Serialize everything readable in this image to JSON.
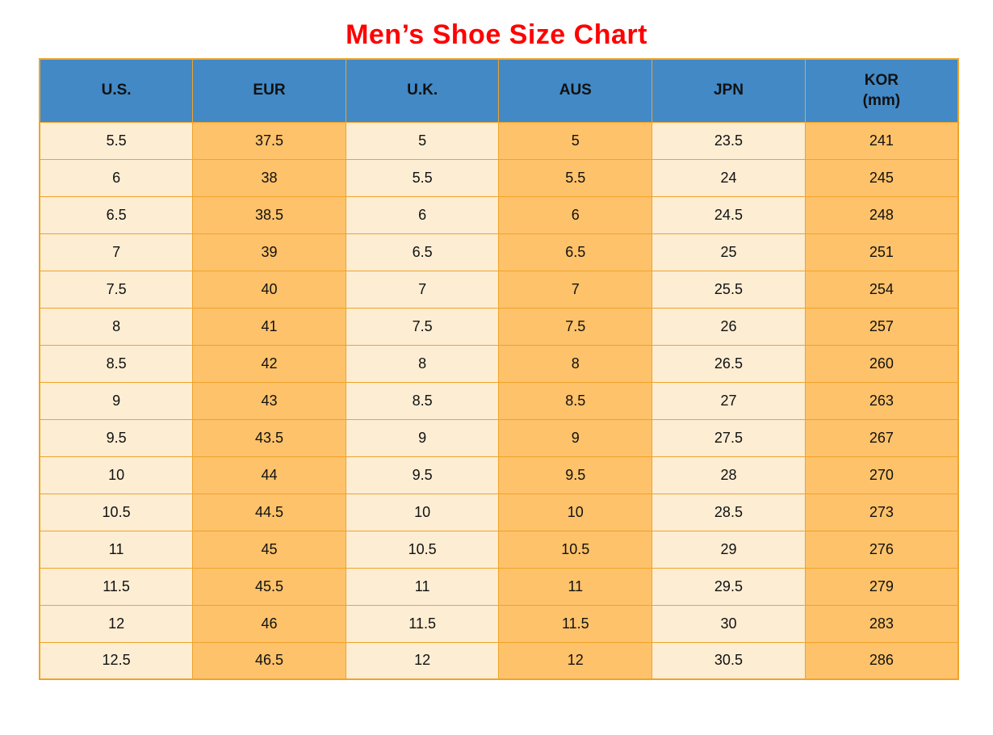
{
  "page": {
    "title": "Men’s Shoe Size Chart"
  },
  "colors": {
    "title": "#ff0000",
    "header_bg": "#4289c6",
    "cell_light_bg": "#fcedd3",
    "cell_orange_bg": "#fdc26a",
    "border": "#f0a32b",
    "text": "#111111",
    "page_bg": "#ffffff"
  },
  "chart_data": {
    "type": "table",
    "title": "Men’s Shoe Size Chart",
    "columns": [
      "U.S.",
      "EUR",
      "U.K.",
      "AUS",
      "JPN",
      "KOR (mm)"
    ],
    "headers": [
      {
        "id": "us",
        "label": "U.S.",
        "sub": ""
      },
      {
        "id": "eur",
        "label": "EUR",
        "sub": ""
      },
      {
        "id": "uk",
        "label": "U.K.",
        "sub": ""
      },
      {
        "id": "aus",
        "label": "AUS",
        "sub": ""
      },
      {
        "id": "jpn",
        "label": "JPN",
        "sub": ""
      },
      {
        "id": "kor",
        "label": "KOR",
        "sub": "(mm)"
      }
    ],
    "column_fills": [
      "light",
      "orange",
      "light",
      "orange",
      "light",
      "orange"
    ],
    "rows": [
      [
        "5.5",
        "37.5",
        "5",
        "5",
        "23.5",
        "241"
      ],
      [
        "6",
        "38",
        "5.5",
        "5.5",
        "24",
        "245"
      ],
      [
        "6.5",
        "38.5",
        "6",
        "6",
        "24.5",
        "248"
      ],
      [
        "7",
        "39",
        "6.5",
        "6.5",
        "25",
        "251"
      ],
      [
        "7.5",
        "40",
        "7",
        "7",
        "25.5",
        "254"
      ],
      [
        "8",
        "41",
        "7.5",
        "7.5",
        "26",
        "257"
      ],
      [
        "8.5",
        "42",
        "8",
        "8",
        "26.5",
        "260"
      ],
      [
        "9",
        "43",
        "8.5",
        "8.5",
        "27",
        "263"
      ],
      [
        "9.5",
        "43.5",
        "9",
        "9",
        "27.5",
        "267"
      ],
      [
        "10",
        "44",
        "9.5",
        "9.5",
        "28",
        "270"
      ],
      [
        "10.5",
        "44.5",
        "10",
        "10",
        "28.5",
        "273"
      ],
      [
        "11",
        "45",
        "10.5",
        "10.5",
        "29",
        "276"
      ],
      [
        "11.5",
        "45.5",
        "11",
        "11",
        "29.5",
        "279"
      ],
      [
        "12",
        "46",
        "11.5",
        "11.5",
        "30",
        "283"
      ],
      [
        "12.5",
        "46.5",
        "12",
        "12",
        "30.5",
        "286"
      ]
    ],
    "grid": true,
    "legend": "none"
  }
}
